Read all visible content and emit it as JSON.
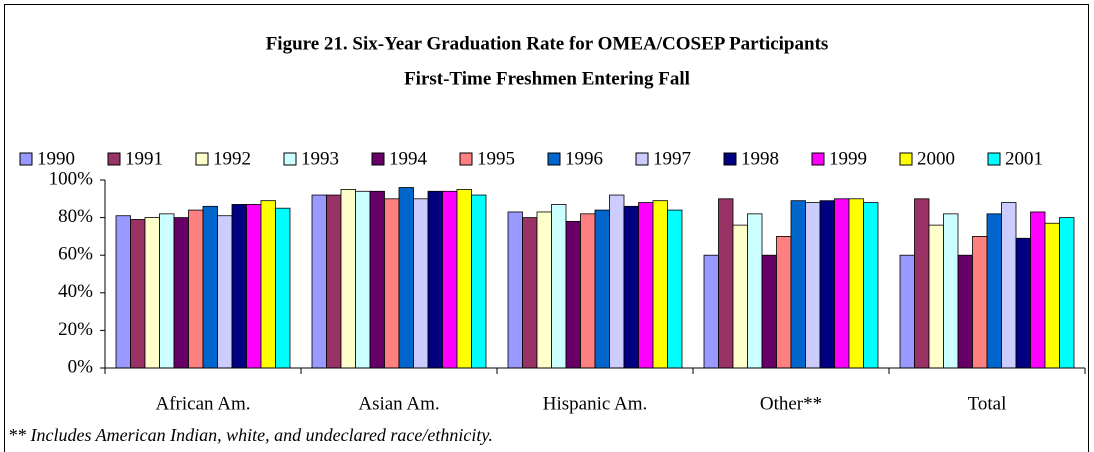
{
  "chart_data": {
    "type": "bar",
    "title": "Figure 21. Six-Year Graduation Rate for OMEA/COSEP Participants",
    "subtitle": "First-Time Freshmen Entering Fall",
    "note": "** Includes American Indian, white, and undeclared race/ethnicity.",
    "categories": [
      "African Am.",
      "Asian Am.",
      "Hispanic Am.",
      "Other**",
      "Total"
    ],
    "series": [
      {
        "name": "1990",
        "color": "#9999ff",
        "values": [
          81,
          92,
          83,
          60,
          60
        ]
      },
      {
        "name": "1991",
        "color": "#993366",
        "values": [
          79,
          92,
          80,
          90,
          90
        ]
      },
      {
        "name": "1992",
        "color": "#ffffcc",
        "values": [
          80,
          95,
          83,
          76,
          76
        ]
      },
      {
        "name": "1993",
        "color": "#ccffff",
        "values": [
          82,
          94,
          87,
          82,
          82
        ]
      },
      {
        "name": "1994",
        "color": "#660066",
        "values": [
          80,
          94,
          78,
          60,
          60
        ]
      },
      {
        "name": "1995",
        "color": "#ff8080",
        "values": [
          84,
          90,
          82,
          70,
          70
        ]
      },
      {
        "name": "1996",
        "color": "#0066cc",
        "values": [
          86,
          96,
          84,
          89,
          82
        ]
      },
      {
        "name": "1997",
        "color": "#ccccff",
        "values": [
          81,
          90,
          92,
          88,
          88
        ]
      },
      {
        "name": "1998",
        "color": "#000080",
        "values": [
          87,
          94,
          86,
          89,
          69
        ]
      },
      {
        "name": "1999",
        "color": "#ff00ff",
        "values": [
          87,
          94,
          88,
          90,
          83
        ]
      },
      {
        "name": "2000",
        "color": "#ffff00",
        "values": [
          89,
          95,
          89,
          90,
          77
        ]
      },
      {
        "name": "2001",
        "color": "#00ffff",
        "values": [
          85,
          92,
          84,
          88,
          80
        ]
      }
    ],
    "ylim": [
      0,
      100
    ],
    "yticks": [
      {
        "value": 0,
        "label": "0%"
      },
      {
        "value": 20,
        "label": "20%"
      },
      {
        "value": 40,
        "label": "40%"
      },
      {
        "value": 60,
        "label": "60%"
      },
      {
        "value": 80,
        "label": "80%"
      },
      {
        "value": 100,
        "label": "100%"
      }
    ],
    "legend": "top"
  }
}
